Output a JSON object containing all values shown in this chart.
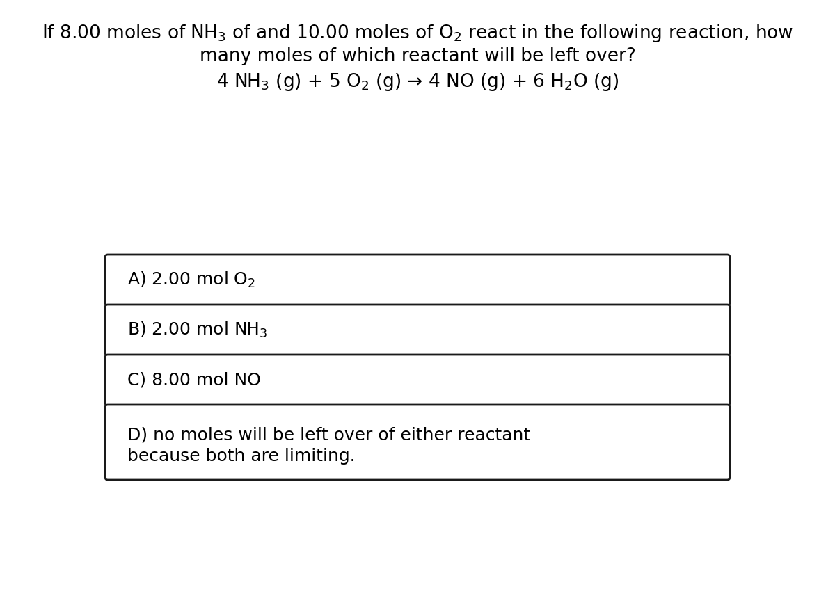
{
  "bg_color": "#ffffff",
  "text_color": "#000000",
  "title_line1": "If 8.00 moles of NH$_3$ of and 10.00 moles of O$_2$ react in the following reaction, how",
  "title_line2": "many moles of which reactant will be left over?",
  "equation": "4 NH$_3$ (g) + 5 O$_2$ (g) → 4 NO (g) + 6 H$_2$O (g)",
  "options": [
    "A) 2.00 mol O$_2$",
    "B) 2.00 mol NH$_3$",
    "C) 8.00 mol NO",
    "D) no moles will be left over of either reactant\nbecause both are limiting."
  ],
  "title_fontsize": 19,
  "eq_fontsize": 19,
  "option_fontsize": 18,
  "fig_width": 12.0,
  "fig_height": 8.57
}
